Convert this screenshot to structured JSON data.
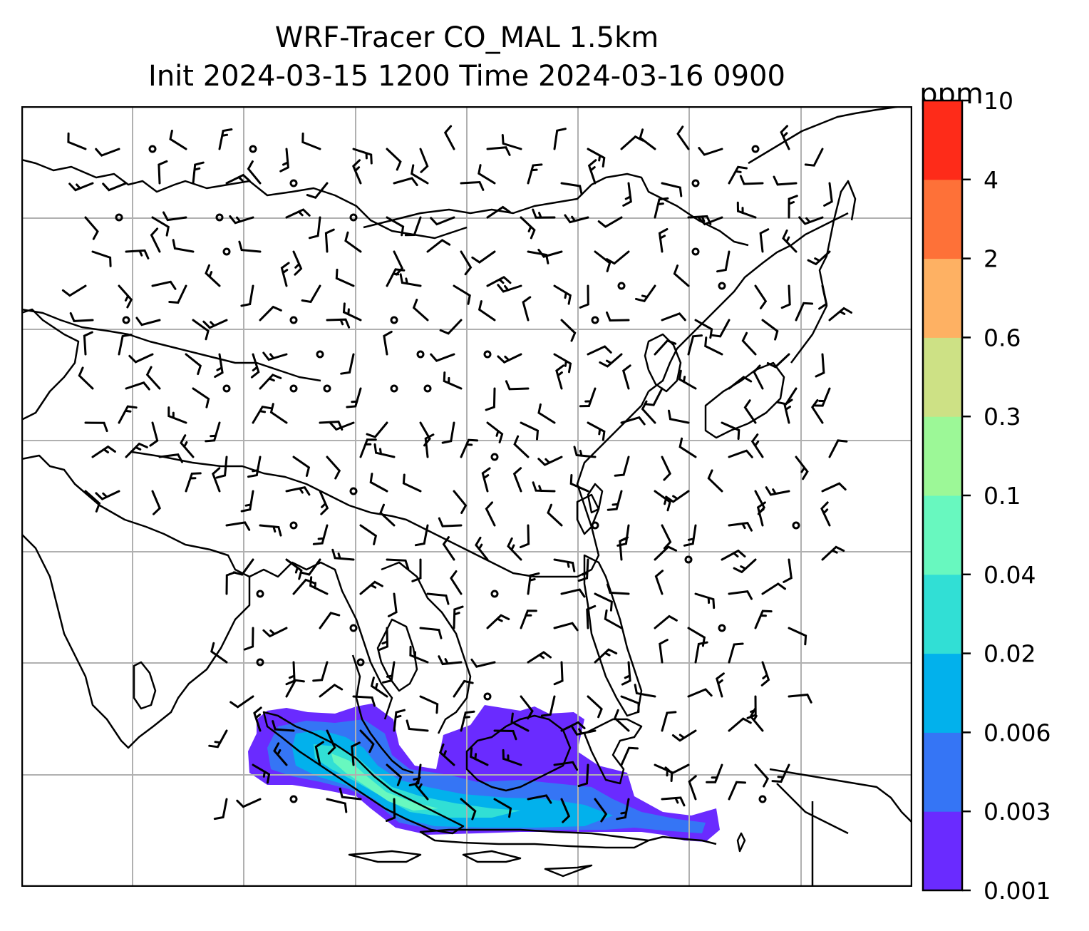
{
  "title_line1": "WRF-Tracer CO_MAL 1.5km",
  "title_line2": "Init 2024-03-15 1200 Time 2024-03-16 0900",
  "colorbar": {
    "unit": "ppm",
    "ticks": [
      "0.001",
      "0.003",
      "0.006",
      "0.02",
      "0.04",
      "0.1",
      "0.3",
      "0.6",
      "2",
      "4",
      "10"
    ],
    "colors": [
      "#6a2bff",
      "#3575f5",
      "#02b1ec",
      "#31dfd5",
      "#68f8bf",
      "#9cf897",
      "#cde185",
      "#feb163",
      "#fe7138",
      "#fe2b19"
    ]
  },
  "map": {
    "grid": "on",
    "coastline_color": "#000000",
    "gridline_color": "#b0b0b0",
    "wind_symbol": "wind-barb",
    "calm_symbol": "calm-circle"
  }
}
